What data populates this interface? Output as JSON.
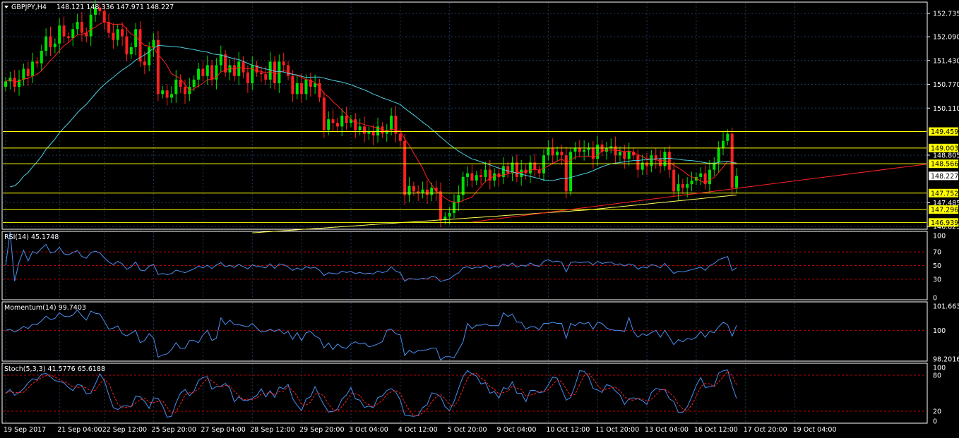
{
  "header": {
    "symbol": "GBPJPY,H4",
    "ohlc": "148.121 148.336 147.971 148.227"
  },
  "colors": {
    "bg": "#000000",
    "frame": "#ffffff",
    "grid": "#1e3a5f",
    "bull": "#00e000",
    "bear": "#ff2020",
    "ma_fast": "#ff2020",
    "ma_mid": "#4dd0e1",
    "ma_slow": "#ffff55",
    "hline": "#ffff00",
    "trend": "#ff2020",
    "indicator": "#4a8ff0",
    "level": "#c00000",
    "signal": "#ff2020"
  },
  "price_axis": {
    "ticks": [
      "152.735",
      "152.090",
      "151.430",
      "150.770",
      "150.110",
      "148.805",
      "147.485",
      "146.825"
    ],
    "current": "148.227"
  },
  "horizontal_levels": [
    "149.459",
    "149.003",
    "148.566",
    "147.752",
    "147.296",
    "146.939"
  ],
  "time_axis": [
    "19 Sep 2017",
    "21 Sep 04:00",
    "22 Sep 12:00",
    "25 Sep 20:00",
    "27 Sep 04:00",
    "28 Sep 12:00",
    "29 Sep 20:00",
    "3 Oct 04:00",
    "4 Oct 12:00",
    "5 Oct 20:00",
    "9 Oct 04:00",
    "10 Oct 12:00",
    "11 Oct 20:00",
    "13 Oct 04:00",
    "16 Oct 12:00",
    "17 Oct 20:00",
    "19 Oct 04:00"
  ],
  "rsi": {
    "title": "RSI(14) 45.1748",
    "ticks": [
      "100",
      "70",
      "50",
      "30",
      "0"
    ]
  },
  "momentum": {
    "title": "Momentum(14) 99.7403",
    "ticks": [
      "101.6634",
      "100",
      "98.2016"
    ]
  },
  "stoch": {
    "title": "Stoch(5,3,3) 41.5776 65.6188",
    "ticks": [
      "100",
      "80",
      "20",
      "0"
    ]
  },
  "chart_data": [
    {
      "type": "candlestick",
      "symbol": "GBPJPY",
      "timeframe": "H4",
      "ylim": [
        146.75,
        153.05
      ],
      "series": [
        {
          "name": "GBPJPY",
          "close": [
            150.85,
            150.95,
            150.7,
            150.9,
            151.2,
            151.0,
            151.4,
            151.35,
            151.7,
            152.1,
            151.8,
            151.9,
            152.4,
            152.1,
            152.05,
            152.3,
            152.5,
            152.2,
            152.1,
            152.7,
            152.9,
            152.8,
            152.5,
            152.2,
            152.0,
            152.3,
            152.1,
            151.6,
            151.8,
            152.3,
            151.4,
            151.3,
            151.8,
            152.0,
            150.5,
            150.6,
            150.4,
            150.5,
            150.9,
            150.7,
            150.5,
            150.7,
            150.9,
            151.2,
            151.0,
            151.3,
            150.9,
            151.3,
            151.6,
            151.1,
            151.3,
            151.0,
            151.4,
            151.1,
            150.8,
            151.3,
            151.1,
            151.05,
            150.9,
            151.4,
            150.8,
            151.4,
            151.3,
            151.0,
            150.5,
            150.8,
            150.5,
            150.9,
            150.7,
            150.8,
            150.4,
            149.5,
            149.8,
            149.7,
            149.6,
            149.9,
            149.7,
            149.8,
            149.5,
            149.6,
            149.4,
            149.45,
            149.35,
            149.6,
            149.4,
            149.5,
            149.9,
            149.4,
            149.2,
            147.7,
            147.95,
            147.8,
            147.75,
            147.85,
            147.7,
            147.9,
            147.8,
            147.0,
            147.1,
            147.2,
            147.5,
            147.7,
            148.2,
            148.3,
            148.1,
            148.25,
            148.2,
            148.4,
            148.1,
            148.3,
            148.2,
            148.5,
            148.3,
            148.6,
            148.2,
            148.4,
            148.3,
            148.6,
            148.4,
            148.3,
            148.8,
            149.0,
            148.8,
            148.9,
            148.8,
            147.8,
            148.9,
            149.0,
            148.9,
            148.95,
            149.0,
            148.7,
            149.1,
            148.9,
            149.0,
            149.05,
            148.8,
            148.9,
            148.7,
            148.9,
            148.8,
            148.4,
            148.6,
            148.5,
            148.8,
            148.7,
            148.5,
            148.9,
            148.4,
            147.8,
            148.0,
            147.9,
            148.0,
            148.1,
            148.2,
            148.3,
            148.0,
            148.4,
            148.6,
            149.0,
            149.2,
            149.4,
            147.9,
            148.23
          ]
        }
      ],
      "overlays": [
        {
          "name": "MA-fast",
          "color": "#ff2020"
        },
        {
          "name": "MA-mid",
          "color": "#4dd0e1"
        },
        {
          "name": "MA-slow",
          "color": "#ffff55"
        }
      ],
      "x_labels": [
        "19 Sep 2017",
        "21 Sep 04:00",
        "22 Sep 12:00",
        "25 Sep 20:00",
        "27 Sep 04:00",
        "28 Sep 12:00",
        "29 Sep 20:00",
        "3 Oct 04:00",
        "4 Oct 12:00",
        "5 Oct 20:00",
        "9 Oct 04:00",
        "10 Oct 12:00",
        "11 Oct 20:00",
        "13 Oct 04:00",
        "16 Oct 12:00",
        "17 Oct 20:00",
        "19 Oct 04:00"
      ],
      "y_ticks": [
        152.735,
        152.09,
        151.43,
        150.77,
        150.11,
        148.805,
        147.485,
        146.825
      ],
      "horizontal_lines": [
        149.459,
        149.003,
        148.566,
        147.752,
        147.296,
        146.939
      ],
      "trendline": {
        "from": [
          104,
          146.95
        ],
        "to": [
          205,
          148.55
        ]
      },
      "grid": true
    },
    {
      "type": "line",
      "title": "RSI(14) 45.1748",
      "ylim": [
        0,
        100
      ],
      "levels": [
        30,
        50,
        70
      ],
      "series": [
        {
          "name": "RSI(14)",
          "values": []
        }
      ]
    },
    {
      "type": "line",
      "title": "Momentum(14) 99.7403",
      "ylim": [
        98.2016,
        101.6634
      ],
      "levels": [
        100
      ],
      "series": [
        {
          "name": "Momentum(14)",
          "values": []
        }
      ]
    },
    {
      "type": "line",
      "title": "Stoch(5,3,3) 41.5776 65.6188",
      "ylim": [
        0,
        100
      ],
      "levels": [
        20,
        80
      ],
      "series": [
        {
          "name": "Stoch %K",
          "values": []
        },
        {
          "name": "Stoch %D",
          "values": []
        }
      ]
    }
  ]
}
